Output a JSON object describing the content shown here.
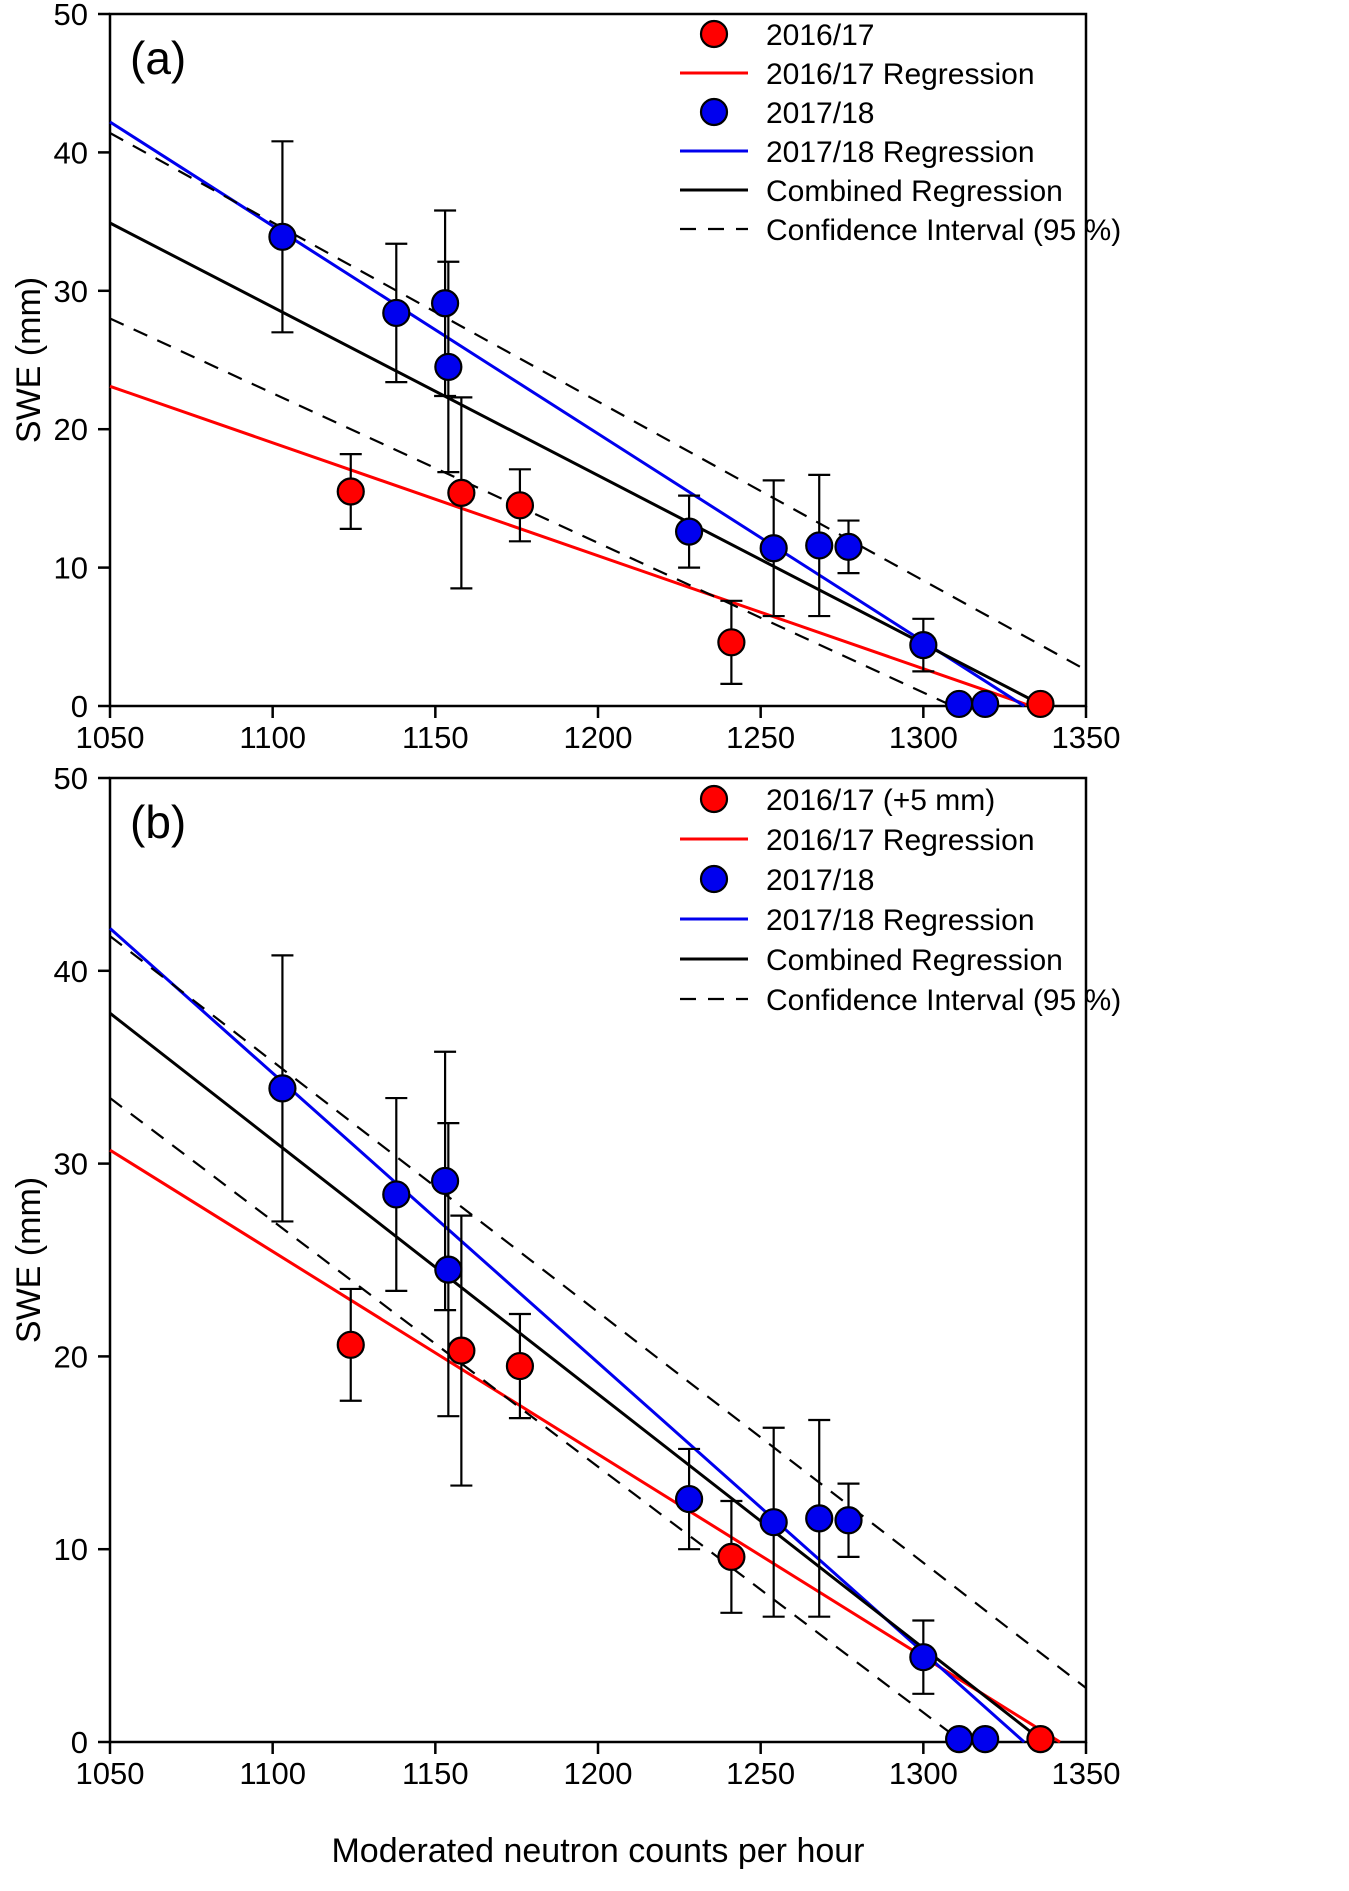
{
  "figure": {
    "x_axis_title": "Moderated neutron counts per hour"
  },
  "colors": {
    "red": "#ff0000",
    "blue": "#0000ee",
    "black": "#000000"
  },
  "chart_data": [
    {
      "type": "scatter",
      "panel_label": "(a)",
      "xlabel": "Moderated neutron counts per hour",
      "ylabel": "SWE (mm)",
      "xlim": [
        1050,
        1350
      ],
      "ylim": [
        0,
        50
      ],
      "xticks": [
        1050,
        1100,
        1150,
        1200,
        1250,
        1300,
        1350
      ],
      "yticks": [
        0,
        10,
        20,
        30,
        40,
        50
      ],
      "grid": false,
      "legend_position": "top-right",
      "series": [
        {
          "name": "2016/17",
          "color": "red",
          "points": [
            {
              "x": 1124,
              "y": 15.5,
              "e": 2.7
            },
            {
              "x": 1158,
              "y": 15.4,
              "e": 6.9
            },
            {
              "x": 1176,
              "y": 14.5,
              "e": 2.6
            },
            {
              "x": 1241,
              "y": 4.6,
              "e": 3.0
            },
            {
              "x": 1336,
              "y": 0.15,
              "e": 0
            }
          ]
        },
        {
          "name": "2017/18",
          "color": "blue",
          "points": [
            {
              "x": 1103,
              "y": 33.9,
              "e": 6.9
            },
            {
              "x": 1138,
              "y": 28.4,
              "e": 5.0
            },
            {
              "x": 1153,
              "y": 29.1,
              "e": 6.7
            },
            {
              "x": 1154,
              "y": 24.5,
              "e": 7.6
            },
            {
              "x": 1228,
              "y": 12.6,
              "e": 2.6
            },
            {
              "x": 1254,
              "y": 11.4,
              "e": 4.9
            },
            {
              "x": 1268,
              "y": 11.6,
              "e": 5.1
            },
            {
              "x": 1277,
              "y": 11.5,
              "e": 1.9
            },
            {
              "x": 1300,
              "y": 4.4,
              "e": 1.9
            },
            {
              "x": 1311,
              "y": 0.15,
              "e": 0
            },
            {
              "x": 1319,
              "y": 0.15,
              "e": 0
            }
          ]
        }
      ],
      "lines": [
        {
          "name": "2016/17 Regression",
          "color": "red",
          "style": "solid",
          "x": [
            1050,
            1333
          ],
          "y": [
            23.1,
            0
          ]
        },
        {
          "name": "2017/18 Regression",
          "color": "blue",
          "style": "solid",
          "x": [
            1050,
            1331
          ],
          "y": [
            42.2,
            0
          ]
        },
        {
          "name": "Combined Regression",
          "color": "black",
          "style": "solid",
          "x": [
            1050,
            1337
          ],
          "y": [
            34.9,
            0
          ]
        },
        {
          "name": "Confidence Interval Upper",
          "color": "black",
          "style": "dashed",
          "x": [
            1050,
            1350
          ],
          "y": [
            41.4,
            2.6
          ]
        },
        {
          "name": "Confidence Interval Lower",
          "color": "black",
          "style": "dashed",
          "x": [
            1050,
            1309
          ],
          "y": [
            28.0,
            0
          ]
        }
      ],
      "legend": [
        {
          "symbol": "marker",
          "color": "red",
          "label": "2016/17"
        },
        {
          "symbol": "line",
          "color": "red",
          "label": "2016/17 Regression"
        },
        {
          "symbol": "marker",
          "color": "blue",
          "label": "2017/18"
        },
        {
          "symbol": "line",
          "color": "blue",
          "label": "2017/18 Regression"
        },
        {
          "symbol": "line",
          "color": "black",
          "label": "Combined Regression"
        },
        {
          "symbol": "dashed",
          "color": "black",
          "label": "Confidence Interval (95 %)"
        }
      ]
    },
    {
      "type": "scatter",
      "panel_label": "(b)",
      "xlabel": "Moderated neutron counts per hour",
      "ylabel": "SWE (mm)",
      "xlim": [
        1050,
        1350
      ],
      "ylim": [
        0,
        50
      ],
      "xticks": [
        1050,
        1100,
        1150,
        1200,
        1250,
        1300,
        1350
      ],
      "yticks": [
        0,
        10,
        20,
        30,
        40,
        50
      ],
      "grid": false,
      "legend_position": "top-right",
      "series": [
        {
          "name": "2016/17 (+5 mm)",
          "color": "red",
          "points": [
            {
              "x": 1124,
              "y": 20.6,
              "e": 2.9
            },
            {
              "x": 1158,
              "y": 20.3,
              "e": 7.0
            },
            {
              "x": 1176,
              "y": 19.5,
              "e": 2.7
            },
            {
              "x": 1241,
              "y": 9.6,
              "e": 2.9
            },
            {
              "x": 1336,
              "y": 0.15,
              "e": 0
            }
          ]
        },
        {
          "name": "2017/18",
          "color": "blue",
          "points": [
            {
              "x": 1103,
              "y": 33.9,
              "e": 6.9
            },
            {
              "x": 1138,
              "y": 28.4,
              "e": 5.0
            },
            {
              "x": 1153,
              "y": 29.1,
              "e": 6.7
            },
            {
              "x": 1154,
              "y": 24.5,
              "e": 7.6
            },
            {
              "x": 1228,
              "y": 12.6,
              "e": 2.6
            },
            {
              "x": 1254,
              "y": 11.4,
              "e": 4.9
            },
            {
              "x": 1268,
              "y": 11.6,
              "e": 5.1
            },
            {
              "x": 1277,
              "y": 11.5,
              "e": 1.9
            },
            {
              "x": 1300,
              "y": 4.4,
              "e": 1.9
            },
            {
              "x": 1311,
              "y": 0.15,
              "e": 0
            },
            {
              "x": 1319,
              "y": 0.15,
              "e": 0
            }
          ]
        }
      ],
      "lines": [
        {
          "name": "2016/17 Regression",
          "color": "red",
          "style": "solid",
          "x": [
            1050,
            1342
          ],
          "y": [
            30.7,
            0
          ]
        },
        {
          "name": "2017/18 Regression",
          "color": "blue",
          "style": "solid",
          "x": [
            1050,
            1331
          ],
          "y": [
            42.2,
            0
          ]
        },
        {
          "name": "Combined Regression",
          "color": "black",
          "style": "solid",
          "x": [
            1050,
            1337
          ],
          "y": [
            37.8,
            0
          ]
        },
        {
          "name": "Confidence Interval Upper",
          "color": "black",
          "style": "dashed",
          "x": [
            1050,
            1350
          ],
          "y": [
            41.8,
            2.8
          ]
        },
        {
          "name": "Confidence Interval Lower",
          "color": "black",
          "style": "dashed",
          "x": [
            1050,
            1312
          ],
          "y": [
            33.4,
            0
          ]
        }
      ],
      "legend": [
        {
          "symbol": "marker",
          "color": "red",
          "label": "2016/17 (+5 mm)"
        },
        {
          "symbol": "line",
          "color": "red",
          "label": "2016/17 Regression"
        },
        {
          "symbol": "marker",
          "color": "blue",
          "label": "2017/18"
        },
        {
          "symbol": "line",
          "color": "blue",
          "label": "2017/18 Regression"
        },
        {
          "symbol": "line",
          "color": "black",
          "label": "Combined Regression"
        },
        {
          "symbol": "dashed",
          "color": "black",
          "label": "Confidence Interval (95 %)"
        }
      ]
    }
  ]
}
